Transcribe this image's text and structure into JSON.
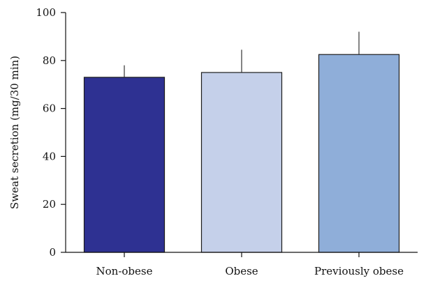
{
  "chart_data": {
    "type": "bar",
    "categories": [
      "Non-obese",
      "Obese",
      "Previously obese"
    ],
    "values": [
      73,
      75,
      82.5
    ],
    "errors": [
      5,
      9.5,
      9.5
    ],
    "colors": [
      "#2e3192",
      "#c5d0ea",
      "#8faed9"
    ],
    "ylabel": "Sweat secretion (mg/30 min)",
    "ylim": [
      0,
      100
    ],
    "yticks": [
      0,
      20,
      40,
      60,
      80,
      100
    ],
    "grid": false
  }
}
